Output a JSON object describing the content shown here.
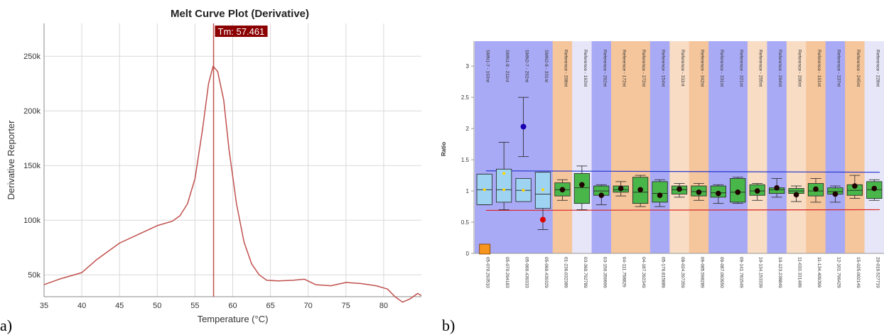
{
  "panel_labels": [
    "a)",
    "b)"
  ],
  "chart_data": [
    {
      "type": "line",
      "title": "Melt Curve Plot (Derivative)",
      "xlabel": "Temperature (°C)",
      "ylabel": "Derivative Reporter",
      "xlim": [
        35,
        85
      ],
      "ylim": [
        30000,
        280000
      ],
      "x_ticks": [
        "35",
        "40",
        "45",
        "50",
        "55",
        "60",
        "65",
        "70",
        "75",
        "80"
      ],
      "y_ticks": [
        "50k",
        "100k",
        "150k",
        "200k",
        "250k"
      ],
      "grid": true,
      "line_color": "#c0504d",
      "marker": {
        "x": 57.461,
        "label": "Tm: 57.461",
        "color": "#8b0000"
      },
      "x": [
        35,
        37,
        40,
        42,
        45,
        47.5,
        50,
        52,
        53,
        54,
        55,
        56,
        56.8,
        57.4,
        58,
        58.8,
        59.5,
        60.5,
        61.5,
        62.5,
        63.5,
        64.5,
        66,
        68,
        69.5,
        71,
        73,
        75,
        77,
        79,
        80.5,
        81.5,
        82.5,
        83.5,
        84.5,
        85
      ],
      "y": [
        41000,
        46000,
        52000,
        64000,
        79000,
        87000,
        95000,
        99000,
        104000,
        115000,
        138000,
        183000,
        225000,
        241000,
        236000,
        210000,
        165000,
        115000,
        80000,
        60000,
        50000,
        45000,
        44500,
        45000,
        46000,
        41000,
        40000,
        43000,
        42000,
        40000,
        37000,
        30000,
        25000,
        28000,
        33000,
        31000
      ]
    },
    {
      "type": "box",
      "ylabel": "Ratio",
      "ylim": [
        0,
        3.4
      ],
      "y_ticks": [
        "0",
        "0.5",
        "1",
        "1.5",
        "2",
        "2.5",
        "3"
      ],
      "upper_line": {
        "value": 1.3,
        "color": "#2233cc"
      },
      "lower_line": {
        "value": 0.7,
        "color": "#dd2222"
      },
      "categories": [
        "SMN1-7 - 193nt",
        "SMN1-8 - 211nt",
        "SMN2-7 - 292nt",
        "SMN2-8 - 331nt",
        "Reference - 208nt",
        "Reference - 163nt",
        "Reference - 292nt",
        "Reference - 172nt",
        "Reference - 272nt",
        "Reference - 154nt",
        "Reference - 311nt",
        "Reference - 342nt",
        "Reference - 331nt",
        "Reference - 321nt",
        "Reference - 255nt",
        "Reference - 264nt",
        "Reference - 200nt",
        "Reference - 191nt",
        "Reference - 237nt",
        "Reference - 245nt",
        "Reference - 228nt"
      ],
      "bottom_labels": [
        "05-070.293510",
        "05-070.294183",
        "05-069.439333",
        "05-069.439329",
        "01-236.032389",
        "03-360.792789",
        "03-150.359999",
        "04-111.758829",
        "04-187.392349",
        "05-176.815889",
        "08-024.397359",
        "09-085.598289",
        "09-087.063950",
        "09-141.781549",
        "10-134.153339",
        "10-123.238849",
        "11-033.331489",
        "11-134.409399",
        "12-101.796429",
        "15-025.002149",
        "20-019.527719"
      ],
      "column_colors": [
        "#a9aaf5",
        "#a9aaf5",
        "#a9aaf5",
        "#a9aaf5",
        "#f5c59b",
        "#e6e6f8",
        "#a9aaf5",
        "#f5c59b",
        "#f5c59b",
        "#a9aaf5",
        "#f8dcc4",
        "#f5c59b",
        "#a9aaf5",
        "#a9aaf5",
        "#f8dcc4",
        "#a9aaf5",
        "#f8dcc4",
        "#f5c59b",
        "#a9aaf5",
        "#f5c59b",
        "#e6e6f8"
      ],
      "box_colors": [
        "#9ed4f2",
        "#9ed4f2",
        "#9ed4f2",
        "#9ed4f2",
        "#49b649",
        "#49b649",
        "#49b649",
        "#49b649",
        "#49b649",
        "#49b649",
        "#49b649",
        "#49b649",
        "#49b649",
        "#49b649",
        "#49b649",
        "#49b649",
        "#49b649",
        "#49b649",
        "#49b649",
        "#49b649",
        "#49b649"
      ],
      "boxes": [
        {
          "q1": 0.78,
          "median": 1.02,
          "q3": 1.27,
          "wlo": 0.78,
          "whi": 1.27,
          "mean": 1.02,
          "meanColor": "#ffd700"
        },
        {
          "q1": 0.82,
          "median": 1.02,
          "q3": 1.35,
          "wlo": 0.7,
          "whi": 1.78,
          "mean": 1.02,
          "meanColor": "#ffd700",
          "extra": 1.28,
          "extraColor": "#ffd700"
        },
        {
          "q1": 0.83,
          "median": 1.01,
          "q3": 1.2,
          "wlo": 1.55,
          "whi": 2.5,
          "mean": 1.01,
          "meanColor": "#ffd700",
          "extra": 2.03,
          "extraColor": "#1a00b0"
        },
        {
          "q1": 0.72,
          "median": 0.95,
          "q3": 1.3,
          "wlo": 0.38,
          "whi": 1.3,
          "mean": 1.02,
          "meanColor": "#ffd700",
          "extra": 0.54,
          "extraColor": "#e00000"
        },
        {
          "q1": 0.92,
          "median": 1.02,
          "q3": 1.13,
          "wlo": 0.85,
          "whi": 1.18,
          "mean": 1.02,
          "meanColor": "#200000"
        },
        {
          "q1": 0.8,
          "median": 1.05,
          "q3": 1.28,
          "wlo": 0.7,
          "whi": 1.4,
          "mean": 1.1,
          "meanColor": "#200000"
        },
        {
          "q1": 0.93,
          "median": 1.0,
          "q3": 1.08,
          "wlo": 0.78,
          "whi": 1.1,
          "mean": 0.93,
          "meanColor": "#200000"
        },
        {
          "q1": 0.98,
          "median": 1.02,
          "q3": 1.08,
          "wlo": 0.92,
          "whi": 1.15,
          "mean": 1.04,
          "meanColor": "#200000"
        },
        {
          "q1": 0.8,
          "median": 0.98,
          "q3": 1.22,
          "wlo": 0.75,
          "whi": 1.25,
          "mean": 1.02,
          "meanColor": "#200000"
        },
        {
          "q1": 0.82,
          "median": 0.96,
          "q3": 1.15,
          "wlo": 0.75,
          "whi": 1.18,
          "mean": 0.93,
          "meanColor": "#200000"
        },
        {
          "q1": 0.95,
          "median": 1.02,
          "q3": 1.08,
          "wlo": 0.9,
          "whi": 1.12,
          "mean": 1.03,
          "meanColor": "#200000"
        },
        {
          "q1": 0.92,
          "median": 0.99,
          "q3": 1.08,
          "wlo": 0.85,
          "whi": 1.12,
          "mean": 0.98,
          "meanColor": "#200000"
        },
        {
          "q1": 0.9,
          "median": 0.97,
          "q3": 1.08,
          "wlo": 0.8,
          "whi": 1.1,
          "mean": 0.96,
          "meanColor": "#200000"
        },
        {
          "q1": 0.82,
          "median": 0.98,
          "q3": 1.2,
          "wlo": 0.8,
          "whi": 1.22,
          "mean": 0.98,
          "meanColor": "#200000"
        },
        {
          "q1": 0.93,
          "median": 1.0,
          "q3": 1.1,
          "wlo": 0.85,
          "whi": 1.12,
          "mean": 1.0,
          "meanColor": "#200000"
        },
        {
          "q1": 0.96,
          "median": 1.02,
          "q3": 1.05,
          "wlo": 0.9,
          "whi": 1.2,
          "mean": 1.05,
          "meanColor": "#200000"
        },
        {
          "q1": 0.96,
          "median": 1.0,
          "q3": 1.04,
          "wlo": 0.83,
          "whi": 1.08,
          "mean": 0.94,
          "meanColor": "#200000"
        },
        {
          "q1": 0.92,
          "median": 1.0,
          "q3": 1.12,
          "wlo": 0.82,
          "whi": 1.2,
          "mean": 1.03,
          "meanColor": "#200000"
        },
        {
          "q1": 0.95,
          "median": 0.99,
          "q3": 1.05,
          "wlo": 0.82,
          "whi": 1.08,
          "mean": 0.95,
          "meanColor": "#200000"
        },
        {
          "q1": 0.93,
          "median": 1.01,
          "q3": 1.1,
          "wlo": 0.88,
          "whi": 1.25,
          "mean": 1.08,
          "meanColor": "#200000"
        },
        {
          "q1": 0.88,
          "median": 1.02,
          "q3": 1.15,
          "wlo": 0.85,
          "whi": 1.18,
          "mean": 1.04,
          "meanColor": "#200000"
        }
      ],
      "indicator": {
        "value": 0.08,
        "color": "#f7941d"
      }
    }
  ]
}
